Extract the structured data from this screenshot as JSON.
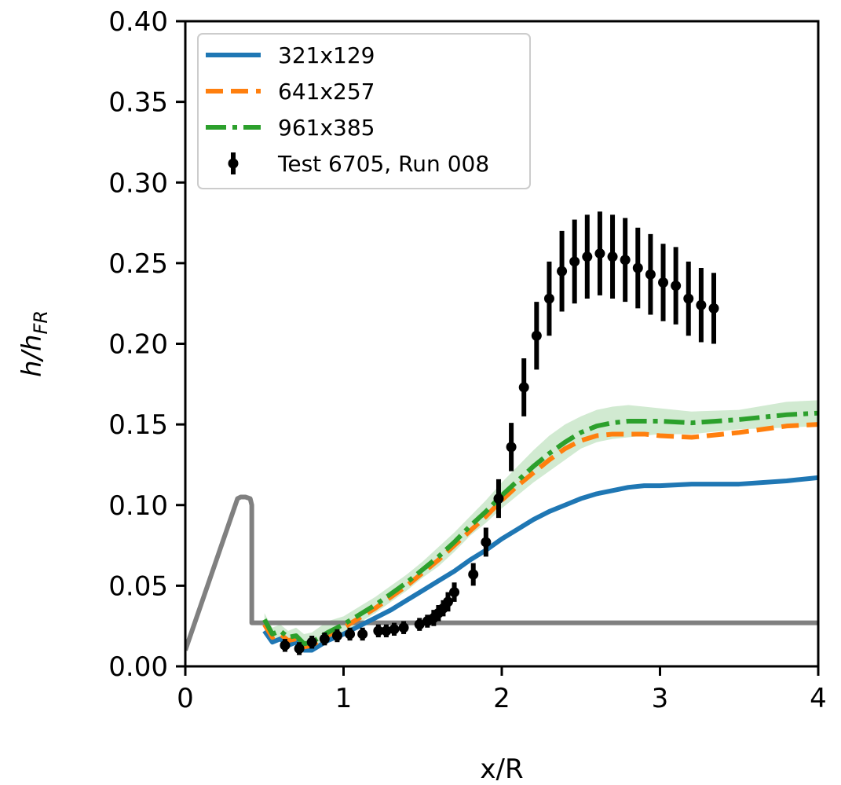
{
  "chart_data": {
    "type": "line",
    "xlabel": "x/R",
    "ylabel_main": "h/h",
    "ylabel_sub": "FR",
    "xlim": [
      0,
      4
    ],
    "ylim": [
      0,
      0.4
    ],
    "xticks": [
      0,
      1,
      2,
      3,
      4
    ],
    "xtick_labels": [
      "0",
      "1",
      "2",
      "3",
      "4"
    ],
    "yticks": [
      0,
      0.05,
      0.1,
      0.15,
      0.2,
      0.25,
      0.3,
      0.35,
      0.4
    ],
    "ytick_labels": [
      "0.00",
      "0.05",
      "0.10",
      "0.15",
      "0.20",
      "0.25",
      "0.30",
      "0.35",
      "0.40"
    ],
    "grid": false,
    "legend_position": "top-left",
    "series": [
      {
        "name": "321x129",
        "style": "solid",
        "color": "#1f77b4",
        "x": [
          0.5,
          0.55,
          0.6,
          0.65,
          0.7,
          0.75,
          0.8,
          0.9,
          1.0,
          1.1,
          1.2,
          1.3,
          1.4,
          1.5,
          1.6,
          1.7,
          1.8,
          1.9,
          2.0,
          2.1,
          2.2,
          2.3,
          2.4,
          2.5,
          2.6,
          2.7,
          2.8,
          2.9,
          3.0,
          3.2,
          3.5,
          3.8,
          4.0
        ],
        "y": [
          0.022,
          0.015,
          0.017,
          0.013,
          0.015,
          0.01,
          0.01,
          0.016,
          0.02,
          0.025,
          0.03,
          0.035,
          0.041,
          0.047,
          0.053,
          0.059,
          0.066,
          0.072,
          0.079,
          0.085,
          0.091,
          0.096,
          0.1,
          0.104,
          0.107,
          0.109,
          0.111,
          0.112,
          0.112,
          0.113,
          0.113,
          0.115,
          0.117
        ]
      },
      {
        "name": "641x257",
        "style": "dashed",
        "color": "#ff7f0e",
        "x": [
          0.5,
          0.55,
          0.6,
          0.65,
          0.7,
          0.75,
          0.8,
          0.9,
          1.0,
          1.1,
          1.2,
          1.3,
          1.4,
          1.5,
          1.6,
          1.7,
          1.8,
          1.9,
          2.0,
          2.1,
          2.2,
          2.3,
          2.4,
          2.5,
          2.6,
          2.7,
          2.8,
          2.9,
          3.0,
          3.2,
          3.5,
          3.8,
          4.0
        ],
        "y": [
          0.026,
          0.018,
          0.02,
          0.016,
          0.017,
          0.012,
          0.013,
          0.019,
          0.024,
          0.03,
          0.036,
          0.043,
          0.05,
          0.058,
          0.066,
          0.075,
          0.084,
          0.093,
          0.103,
          0.112,
          0.12,
          0.128,
          0.135,
          0.14,
          0.143,
          0.144,
          0.144,
          0.144,
          0.143,
          0.142,
          0.145,
          0.149,
          0.15
        ]
      },
      {
        "name": "961x385",
        "style": "dashdot",
        "color": "#2ca02c",
        "x": [
          0.5,
          0.55,
          0.6,
          0.65,
          0.7,
          0.75,
          0.8,
          0.9,
          1.0,
          1.1,
          1.2,
          1.3,
          1.4,
          1.5,
          1.6,
          1.7,
          1.8,
          1.9,
          2.0,
          2.1,
          2.2,
          2.3,
          2.4,
          2.5,
          2.6,
          2.7,
          2.8,
          2.9,
          3.0,
          3.2,
          3.5,
          3.8,
          4.0
        ],
        "y": [
          0.029,
          0.02,
          0.022,
          0.018,
          0.019,
          0.014,
          0.015,
          0.021,
          0.026,
          0.032,
          0.038,
          0.045,
          0.052,
          0.06,
          0.068,
          0.077,
          0.087,
          0.096,
          0.106,
          0.115,
          0.124,
          0.132,
          0.139,
          0.145,
          0.149,
          0.151,
          0.152,
          0.152,
          0.152,
          0.151,
          0.153,
          0.156,
          0.157
        ],
        "band_upper": [
          0.033,
          0.024,
          0.026,
          0.022,
          0.024,
          0.02,
          0.021,
          0.028,
          0.031,
          0.037,
          0.043,
          0.05,
          0.057,
          0.065,
          0.074,
          0.083,
          0.093,
          0.103,
          0.114,
          0.124,
          0.134,
          0.143,
          0.15,
          0.155,
          0.159,
          0.161,
          0.162,
          0.161,
          0.16,
          0.158,
          0.159,
          0.164,
          0.165
        ],
        "band_lower": [
          0.025,
          0.016,
          0.018,
          0.014,
          0.014,
          0.009,
          0.01,
          0.015,
          0.021,
          0.027,
          0.033,
          0.04,
          0.047,
          0.055,
          0.062,
          0.071,
          0.081,
          0.089,
          0.098,
          0.106,
          0.114,
          0.121,
          0.128,
          0.135,
          0.139,
          0.141,
          0.142,
          0.143,
          0.144,
          0.144,
          0.147,
          0.148,
          0.149
        ]
      },
      {
        "name": "Test 6705, Run 008",
        "style": "errorbar",
        "color": "#000000",
        "x": [
          0.63,
          0.72,
          0.8,
          0.88,
          0.96,
          1.04,
          1.12,
          1.22,
          1.27,
          1.32,
          1.38,
          1.48,
          1.53,
          1.57,
          1.6,
          1.63,
          1.66,
          1.7,
          1.82,
          1.9,
          1.98,
          2.06,
          2.14,
          2.22,
          2.3,
          2.38,
          2.46,
          2.54,
          2.62,
          2.7,
          2.78,
          2.86,
          2.94,
          3.02,
          3.1,
          3.18,
          3.26,
          3.34
        ],
        "y": [
          0.013,
          0.011,
          0.015,
          0.017,
          0.019,
          0.02,
          0.02,
          0.022,
          0.022,
          0.023,
          0.024,
          0.026,
          0.028,
          0.03,
          0.033,
          0.036,
          0.04,
          0.046,
          0.057,
          0.077,
          0.104,
          0.136,
          0.173,
          0.205,
          0.228,
          0.245,
          0.251,
          0.254,
          0.256,
          0.254,
          0.252,
          0.247,
          0.243,
          0.238,
          0.236,
          0.228,
          0.224,
          0.222
        ],
        "err": [
          0.004,
          0.004,
          0.004,
          0.004,
          0.004,
          0.004,
          0.004,
          0.004,
          0.004,
          0.004,
          0.004,
          0.004,
          0.004,
          0.005,
          0.005,
          0.005,
          0.006,
          0.006,
          0.007,
          0.009,
          0.012,
          0.015,
          0.018,
          0.021,
          0.023,
          0.025,
          0.026,
          0.026,
          0.026,
          0.026,
          0.026,
          0.025,
          0.025,
          0.024,
          0.024,
          0.023,
          0.023,
          0.022
        ]
      },
      {
        "name": "",
        "style": "solid",
        "color": "#808080",
        "x": [
          0,
          0.33,
          0.35,
          0.38,
          0.41,
          0.42,
          0.42,
          4.0
        ],
        "y": [
          0.01,
          0.104,
          0.105,
          0.105,
          0.104,
          0.1,
          0.027,
          0.027
        ]
      }
    ],
    "legend": [
      {
        "label": "321x129",
        "style": "solid",
        "color": "#1f77b4"
      },
      {
        "label": "641x257",
        "style": "dashed",
        "color": "#ff7f0e"
      },
      {
        "label": "961x385",
        "style": "dashdot",
        "color": "#2ca02c"
      },
      {
        "label": "Test 6705, Run 008",
        "style": "errorbar",
        "color": "#000000"
      }
    ]
  }
}
